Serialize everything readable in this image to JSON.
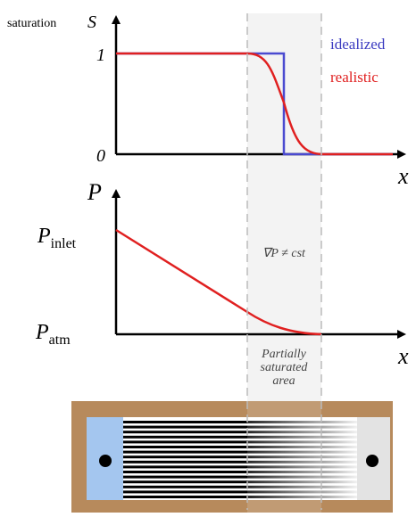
{
  "saturation_plot": {
    "y_label": "saturation",
    "y_symbol": "S",
    "tick_high": 1,
    "tick_low": 0,
    "x_symbol": "x",
    "legend": [
      "idealized",
      "realistic"
    ]
  },
  "pressure_plot": {
    "y_symbol": "P",
    "inlet": {
      "symbol": "P",
      "subscript": "inlet"
    },
    "atm": {
      "symbol": "P",
      "subscript": "atm"
    },
    "x_symbol": "x",
    "annotation": "∇P ≠ cst"
  },
  "region": {
    "lines": [
      "Partially",
      "saturated",
      "area"
    ]
  }
}
